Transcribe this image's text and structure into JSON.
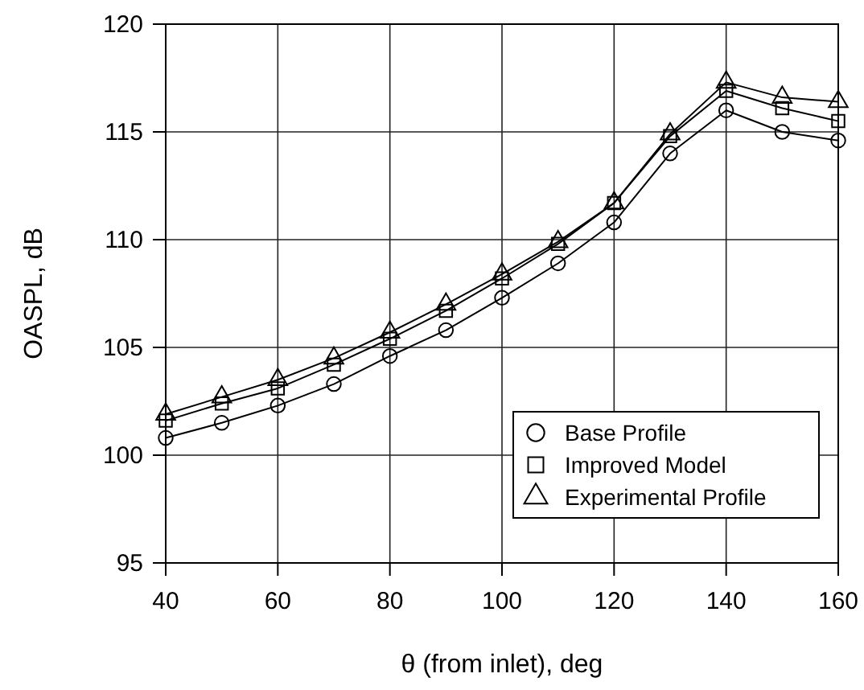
{
  "chart_data": {
    "type": "line",
    "xlabel": "θ (from inlet), deg",
    "ylabel": "OASPL, dB",
    "x": [
      40,
      50,
      60,
      70,
      80,
      90,
      100,
      110,
      120,
      130,
      140,
      150,
      160
    ],
    "series": [
      {
        "name": "Base Profile",
        "color": "#000000",
        "marker": "circle",
        "values": [
          100.8,
          101.5,
          102.3,
          103.3,
          104.6,
          105.8,
          107.3,
          108.9,
          110.8,
          114.0,
          116.0,
          115.0,
          114.6
        ]
      },
      {
        "name": "Improved Model",
        "color": "#000000",
        "marker": "square",
        "values": [
          101.6,
          102.4,
          103.1,
          104.2,
          105.4,
          106.7,
          108.2,
          109.8,
          111.7,
          114.8,
          116.9,
          116.1,
          115.5
        ]
      },
      {
        "name": "Experimental Profile",
        "color": "#000000",
        "marker": "triangle",
        "values": [
          101.9,
          102.7,
          103.5,
          104.5,
          105.7,
          107.0,
          108.4,
          109.9,
          111.7,
          114.9,
          117.3,
          116.6,
          116.4
        ]
      }
    ],
    "xlim": [
      40,
      160
    ],
    "xticks": [
      40,
      60,
      80,
      100,
      120,
      140,
      160
    ],
    "ylim": [
      95,
      120
    ],
    "yticks": [
      95,
      100,
      105,
      110,
      115,
      120
    ],
    "grid": true,
    "legend": "bottom right",
    "line_style": "solid"
  }
}
